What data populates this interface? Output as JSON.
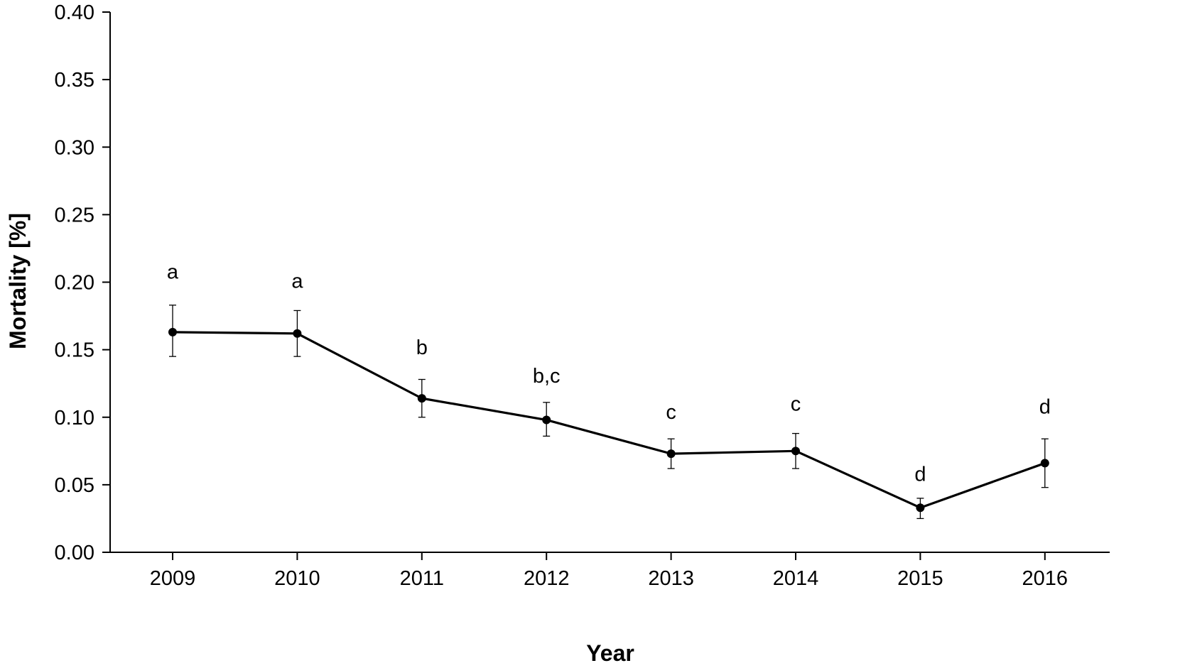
{
  "chart_data": {
    "type": "line",
    "title": "",
    "xlabel": "Year",
    "ylabel": "Mortality [%]",
    "ylim": [
      0,
      0.4
    ],
    "yticks": [
      "0.00",
      "0.05",
      "0.10",
      "0.15",
      "0.20",
      "0.25",
      "0.30",
      "0.35",
      "0.40"
    ],
    "categories": [
      "2009",
      "2010",
      "2011",
      "2012",
      "2013",
      "2014",
      "2015",
      "2016"
    ],
    "grid": false,
    "legend": "none",
    "series": [
      {
        "values": [
          0.163,
          0.162,
          0.114,
          0.098,
          0.073,
          0.075,
          0.033,
          0.066
        ],
        "error_upper": [
          0.183,
          0.179,
          0.128,
          0.111,
          0.084,
          0.088,
          0.04,
          0.084
        ],
        "error_lower": [
          0.145,
          0.145,
          0.1,
          0.086,
          0.062,
          0.062,
          0.025,
          0.048
        ],
        "color": "#000000"
      }
    ],
    "annotations": [
      {
        "category": "2009",
        "text": "a",
        "y": 0.208
      },
      {
        "category": "2010",
        "text": "a",
        "y": 0.201
      },
      {
        "category": "2011",
        "text": "b",
        "y": 0.152
      },
      {
        "category": "2012",
        "text": "b,c",
        "y": 0.131
      },
      {
        "category": "2013",
        "text": "c",
        "y": 0.104
      },
      {
        "category": "2014",
        "text": "c",
        "y": 0.11
      },
      {
        "category": "2015",
        "text": "d",
        "y": 0.058
      },
      {
        "category": "2016",
        "text": "d",
        "y": 0.108
      }
    ]
  }
}
